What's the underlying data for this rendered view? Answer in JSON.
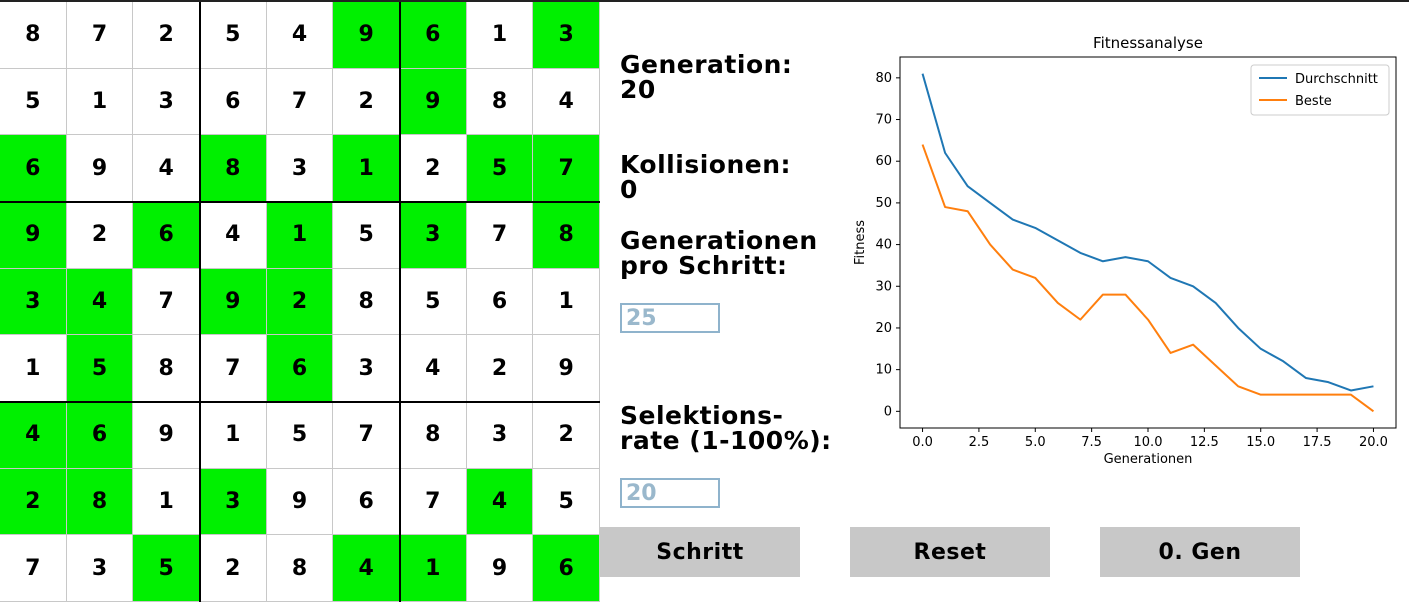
{
  "sudoku": {
    "grid": [
      [
        8,
        7,
        2,
        5,
        4,
        9,
        6,
        1,
        3
      ],
      [
        5,
        1,
        3,
        6,
        7,
        2,
        9,
        8,
        4
      ],
      [
        6,
        9,
        4,
        8,
        3,
        1,
        2,
        5,
        7
      ],
      [
        9,
        2,
        6,
        4,
        1,
        5,
        3,
        7,
        8
      ],
      [
        3,
        4,
        7,
        9,
        2,
        8,
        5,
        6,
        1
      ],
      [
        1,
        5,
        8,
        7,
        6,
        3,
        4,
        2,
        9
      ],
      [
        4,
        6,
        9,
        1,
        5,
        7,
        8,
        3,
        2
      ],
      [
        2,
        8,
        1,
        3,
        9,
        6,
        7,
        4,
        5
      ],
      [
        7,
        3,
        5,
        2,
        8,
        4,
        1,
        9,
        6
      ]
    ],
    "highlighted": [
      [
        0,
        5
      ],
      [
        0,
        6
      ],
      [
        0,
        8
      ],
      [
        1,
        6
      ],
      [
        2,
        0
      ],
      [
        2,
        3
      ],
      [
        2,
        5
      ],
      [
        2,
        7
      ],
      [
        2,
        8
      ],
      [
        3,
        0
      ],
      [
        3,
        2
      ],
      [
        3,
        4
      ],
      [
        3,
        6
      ],
      [
        3,
        8
      ],
      [
        4,
        0
      ],
      [
        4,
        1
      ],
      [
        4,
        3
      ],
      [
        4,
        4
      ],
      [
        5,
        1
      ],
      [
        5,
        4
      ],
      [
        6,
        0
      ],
      [
        6,
        1
      ],
      [
        7,
        0
      ],
      [
        7,
        1
      ],
      [
        7,
        3
      ],
      [
        7,
        7
      ],
      [
        8,
        2
      ],
      [
        8,
        5
      ],
      [
        8,
        6
      ],
      [
        8,
        8
      ]
    ],
    "highlight_color": "#00f000"
  },
  "panel": {
    "generation_label": "Generation:",
    "generation_value": "20",
    "collisions_label": "Kollisionen:",
    "collisions_value": "0",
    "gens_per_step_label_1": "Generationen",
    "gens_per_step_label_2": "pro Schritt:",
    "gens_per_step_value": "25",
    "selection_label_1": "Selektions-",
    "selection_label_2": "rate (1-100%):",
    "selection_value": "20"
  },
  "buttons": {
    "step": "Schritt",
    "reset": "Reset",
    "gen0": "0. Gen"
  },
  "chart_data": {
    "type": "line",
    "title": "Fitnessanalyse",
    "xlabel": "Generationen",
    "ylabel": "Fitness",
    "xlim": [
      -1,
      21
    ],
    "ylim": [
      -4,
      85
    ],
    "xticks": [
      0.0,
      2.5,
      5.0,
      7.5,
      10.0,
      12.5,
      15.0,
      17.5,
      20.0
    ],
    "xtick_labels": [
      "0.0",
      "2.5",
      "5.0",
      "7.5",
      "10.0",
      "12.5",
      "15.0",
      "17.5",
      "20.0"
    ],
    "yticks": [
      0,
      10,
      20,
      30,
      40,
      50,
      60,
      70,
      80
    ],
    "ytick_labels": [
      "0",
      "10",
      "20",
      "30",
      "40",
      "50",
      "60",
      "70",
      "80"
    ],
    "grid": false,
    "legend_position": "top-right",
    "x": [
      0,
      1,
      2,
      3,
      4,
      5,
      6,
      7,
      8,
      9,
      10,
      11,
      12,
      13,
      14,
      15,
      16,
      17,
      18,
      19,
      20
    ],
    "series": [
      {
        "name": "Durchschnitt",
        "color": "#1f77b4",
        "values": [
          81,
          62,
          54,
          50,
          46,
          44,
          41,
          38,
          36,
          37,
          36,
          32,
          30,
          26,
          20,
          15,
          12,
          8,
          7,
          5,
          6
        ]
      },
      {
        "name": "Beste",
        "color": "#ff7f0e",
        "values": [
          64,
          49,
          48,
          40,
          34,
          32,
          26,
          22,
          28,
          28,
          22,
          14,
          16,
          11,
          6,
          4,
          4,
          4,
          4,
          4,
          0
        ]
      }
    ]
  }
}
